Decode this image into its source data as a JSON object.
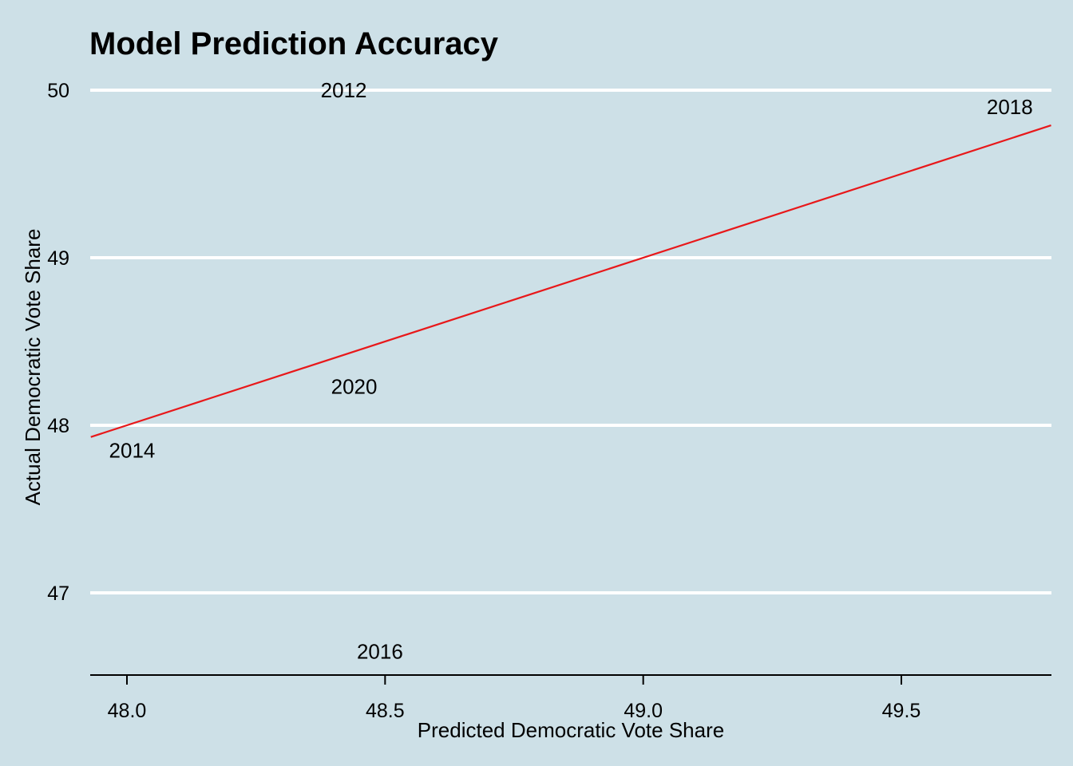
{
  "chart_data": {
    "type": "scatter",
    "title": "Model Prediction Accuracy",
    "xlabel": "Predicted Democratic Vote Share",
    "ylabel": "Actual Democratic Vote Share",
    "xlim": [
      47.93,
      49.79
    ],
    "ylim": [
      46.52,
      50.0
    ],
    "x_ticks": [
      48.0,
      48.5,
      49.0,
      49.5
    ],
    "x_tick_labels": [
      "48.0",
      "48.5",
      "49.0",
      "49.5"
    ],
    "y_ticks": [
      47,
      48,
      49,
      50
    ],
    "y_tick_labels": [
      "47",
      "48",
      "49",
      "50"
    ],
    "grid": "horizontal major lines",
    "points": [
      {
        "label": "2012",
        "x": 48.42,
        "y": 50.0
      },
      {
        "label": "2014",
        "x": 48.01,
        "y": 47.85
      },
      {
        "label": "2016",
        "x": 48.49,
        "y": 46.65
      },
      {
        "label": "2018",
        "x": 49.71,
        "y": 49.9
      },
      {
        "label": "2020",
        "x": 48.44,
        "y": 48.23
      }
    ],
    "reference_line": {
      "type": "y = x",
      "color": "#e8181a"
    },
    "colors": {
      "background": "#cde0e7",
      "grid": "#ffffff",
      "line": "#e8181a",
      "text": "#000000"
    }
  }
}
